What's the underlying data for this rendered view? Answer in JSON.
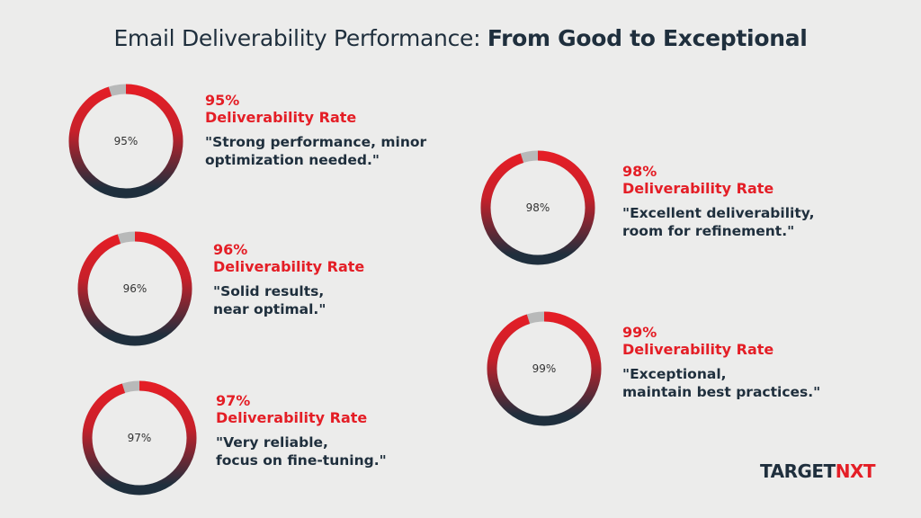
{
  "title": {
    "regular": "Email Deliverability Performance: ",
    "bold": "From Good to Exceptional"
  },
  "colors": {
    "red": "#e41e26",
    "dark": "#1f2f3d",
    "track": "#b8b9b9"
  },
  "chart_data": {
    "type": "pie",
    "subtype": "donut",
    "items": [
      {
        "value": 95,
        "center_label": "95%",
        "pct": "95%",
        "label": "Deliverability Rate",
        "quote": "\"Strong performance, minor\noptimization needed.\""
      },
      {
        "value": 96,
        "center_label": "96%",
        "pct": "96%",
        "label": "Deliverability Rate",
        "quote": "\"Solid results,\nnear optimal.\""
      },
      {
        "value": 97,
        "center_label": "97%",
        "pct": "97%",
        "label": "Deliverability Rate",
        "quote": "\"Very reliable,\nfocus on fine-tuning.\""
      },
      {
        "value": 98,
        "center_label": "98%",
        "pct": "98%",
        "label": "Deliverability Rate",
        "quote": "\"Excellent deliverability,\nroom for refinement.\""
      },
      {
        "value": 99,
        "center_label": "99%",
        "pct": "99%",
        "label": "Deliverability Rate",
        "quote": "\"Exceptional,\nmaintain best practices.\""
      }
    ]
  },
  "logo": {
    "part1": "TARGET",
    "part2": "NXT"
  }
}
